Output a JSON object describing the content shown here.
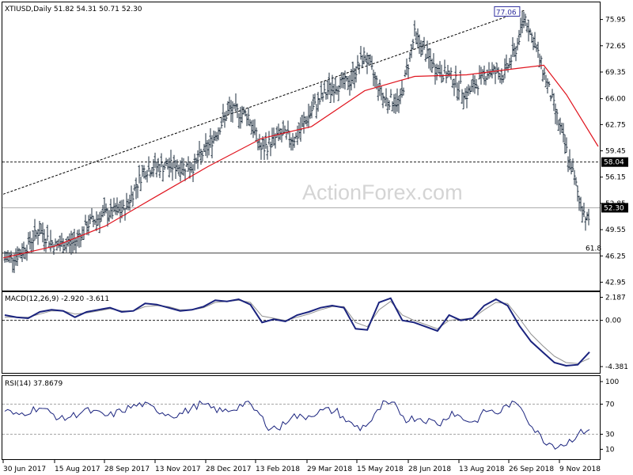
{
  "chart_data": [
    {
      "type": "ohlc",
      "title": "XTIUSD,Daily  51.82 54.31 50.71 52.30",
      "symbol": "XTIUSD",
      "timeframe": "Daily",
      "last_ohlc": {
        "open": 51.82,
        "high": 54.31,
        "low": 50.71,
        "close": 52.3
      },
      "y_ticks": [
        "75.95",
        "72.65",
        "69.35",
        "66.00",
        "62.75",
        "59.45",
        "56.15",
        "52.85",
        "49.55",
        "46.25",
        "42.95"
      ],
      "ylim": [
        42.0,
        78.0
      ],
      "x_ticks": [
        "30 Jun 2017",
        "15 Aug 2017",
        "28 Sep 2017",
        "13 Nov 2017",
        "28 Dec 2017",
        "13 Feb 2018",
        "29 Mar 2018",
        "15 May 2018",
        "28 Jun 2018",
        "13 Aug 2018",
        "26 Sep 2018",
        "9 Nov 2018"
      ],
      "series_close_approx": [
        {
          "x": "30 Jun 2017",
          "y": 45.8
        },
        {
          "x": "15 Jul 2017",
          "y": 46.5
        },
        {
          "x": "1 Aug 2017",
          "y": 49.5
        },
        {
          "x": "15 Aug 2017",
          "y": 47.5
        },
        {
          "x": "1 Sep 2017",
          "y": 48.0
        },
        {
          "x": "15 Sep 2017",
          "y": 50.5
        },
        {
          "x": "28 Sep 2017",
          "y": 51.5
        },
        {
          "x": "15 Oct 2017",
          "y": 52.0
        },
        {
          "x": "1 Nov 2017",
          "y": 57.0
        },
        {
          "x": "13 Nov 2017",
          "y": 57.5
        },
        {
          "x": "1 Dec 2017",
          "y": 57.5
        },
        {
          "x": "15 Dec 2017",
          "y": 57.5
        },
        {
          "x": "28 Dec 2017",
          "y": 60.0
        },
        {
          "x": "15 Jan 2018",
          "y": 64.5
        },
        {
          "x": "1 Feb 2018",
          "y": 64.0
        },
        {
          "x": "13 Feb 2018",
          "y": 59.5
        },
        {
          "x": "1 Mar 2018",
          "y": 61.5
        },
        {
          "x": "15 Mar 2018",
          "y": 61.0
        },
        {
          "x": "29 Mar 2018",
          "y": 64.5
        },
        {
          "x": "15 Apr 2018",
          "y": 67.5
        },
        {
          "x": "1 May 2018",
          "y": 68.0
        },
        {
          "x": "15 May 2018",
          "y": 71.5
        },
        {
          "x": "1 Jun 2018",
          "y": 66.0
        },
        {
          "x": "15 Jun 2018",
          "y": 65.5
        },
        {
          "x": "28 Jun 2018",
          "y": 74.0
        },
        {
          "x": "15 Jul 2018",
          "y": 70.0
        },
        {
          "x": "1 Aug 2018",
          "y": 68.5
        },
        {
          "x": "13 Aug 2018",
          "y": 66.5
        },
        {
          "x": "1 Sep 2018",
          "y": 69.5
        },
        {
          "x": "15 Sep 2018",
          "y": 69.0
        },
        {
          "x": "26 Sep 2018",
          "y": 72.5
        },
        {
          "x": "3 Oct 2018",
          "y": 76.5
        },
        {
          "x": "15 Oct 2018",
          "y": 71.5
        },
        {
          "x": "25 Oct 2018",
          "y": 67.0
        },
        {
          "x": "1 Nov 2018",
          "y": 63.5
        },
        {
          "x": "9 Nov 2018",
          "y": 59.5
        },
        {
          "x": "15 Nov 2018",
          "y": 56.5
        },
        {
          "x": "21 Nov 2018",
          "y": 53.0
        },
        {
          "x": "28 Nov 2018",
          "y": 50.5
        },
        {
          "x": "3 Dec 2018",
          "y": 53.5
        },
        {
          "x": "7 Dec 2018",
          "y": 52.3
        }
      ],
      "moving_average_approx": [
        {
          "x": "30 Jun 2017",
          "y": 46.0
        },
        {
          "x": "15 Aug 2017",
          "y": 47.5
        },
        {
          "x": "28 Sep 2017",
          "y": 50.0
        },
        {
          "x": "13 Nov 2017",
          "y": 53.8
        },
        {
          "x": "28 Dec 2017",
          "y": 57.5
        },
        {
          "x": "13 Feb 2018",
          "y": 61.0
        },
        {
          "x": "29 Mar 2018",
          "y": 62.5
        },
        {
          "x": "15 May 2018",
          "y": 67.0
        },
        {
          "x": "28 Jun 2018",
          "y": 68.8
        },
        {
          "x": "13 Aug 2018",
          "y": 69.0
        },
        {
          "x": "26 Sep 2018",
          "y": 69.8
        },
        {
          "x": "20 Oct 2018",
          "y": 70.2
        },
        {
          "x": "9 Nov 2018",
          "y": 66.5
        },
        {
          "x": "7 Dec 2018",
          "y": 60.0
        }
      ],
      "trendline": {
        "from": {
          "x": "30 Jun 2017",
          "y": 54.0
        },
        "to": {
          "x": "3 Oct 2018",
          "y": 77.1
        }
      },
      "levels": [
        {
          "value": 58.04,
          "label": "58.04",
          "style": "dashed"
        },
        {
          "value": 52.3,
          "label": "52.30",
          "style": "solid-current"
        },
        {
          "value": 46.6,
          "label": "61.8",
          "style": "solid"
        }
      ],
      "peak_label": {
        "value": 77.06,
        "label": "77.06"
      },
      "watermark": "ActionForex.com"
    },
    {
      "type": "line",
      "title": "MACD(12,26,9) -2.920 -3.611",
      "y_ticks": [
        "2.187",
        "0.00",
        "-4.381"
      ],
      "ylim": [
        -4.9,
        2.6
      ],
      "macd_approx": [
        0.5,
        0.3,
        0.2,
        0.8,
        1.0,
        0.9,
        0.3,
        0.8,
        1.0,
        1.2,
        0.8,
        0.9,
        1.6,
        1.5,
        1.2,
        0.9,
        1.0,
        1.3,
        1.9,
        1.8,
        2.0,
        1.5,
        -0.2,
        0.1,
        -0.1,
        0.5,
        0.8,
        1.2,
        1.4,
        1.2,
        -0.8,
        -0.9,
        1.7,
        2.1,
        0.0,
        -0.2,
        -0.6,
        -1.0,
        0.5,
        0.0,
        0.2,
        1.4,
        2.0,
        1.4,
        -0.5,
        -2.0,
        -3.0,
        -4.0,
        -4.3,
        -4.2,
        -3.0
      ],
      "signal_approx": [
        0.3,
        0.3,
        0.3,
        0.6,
        0.9,
        0.9,
        0.6,
        0.7,
        0.9,
        1.1,
        0.9,
        0.9,
        1.3,
        1.4,
        1.3,
        1.0,
        1.0,
        1.2,
        1.7,
        1.8,
        1.9,
        1.7,
        0.4,
        0.2,
        0.0,
        0.3,
        0.6,
        1.0,
        1.3,
        1.3,
        -0.2,
        -0.6,
        1.0,
        1.8,
        0.5,
        0.0,
        -0.4,
        -0.8,
        0.0,
        0.1,
        0.2,
        1.0,
        1.7,
        1.6,
        0.2,
        -1.3,
        -2.4,
        -3.4,
        -4.0,
        -4.1,
        -3.6
      ]
    },
    {
      "type": "line",
      "title": "RSI(14) 37.8679",
      "y_ticks": [
        "100",
        "70",
        "30",
        "10"
      ],
      "ylim": [
        0,
        100
      ],
      "guide_levels": [
        70,
        30
      ],
      "rsi_approx": [
        62,
        55,
        60,
        66,
        58,
        50,
        55,
        62,
        58,
        54,
        60,
        66,
        70,
        64,
        58,
        55,
        62,
        70,
        65,
        60,
        64,
        72,
        60,
        40,
        38,
        55,
        52,
        58,
        62,
        60,
        45,
        38,
        48,
        70,
        68,
        50,
        52,
        48,
        44,
        60,
        50,
        46,
        62,
        58,
        70,
        68,
        40,
        22,
        15,
        18,
        30,
        38
      ]
    }
  ]
}
